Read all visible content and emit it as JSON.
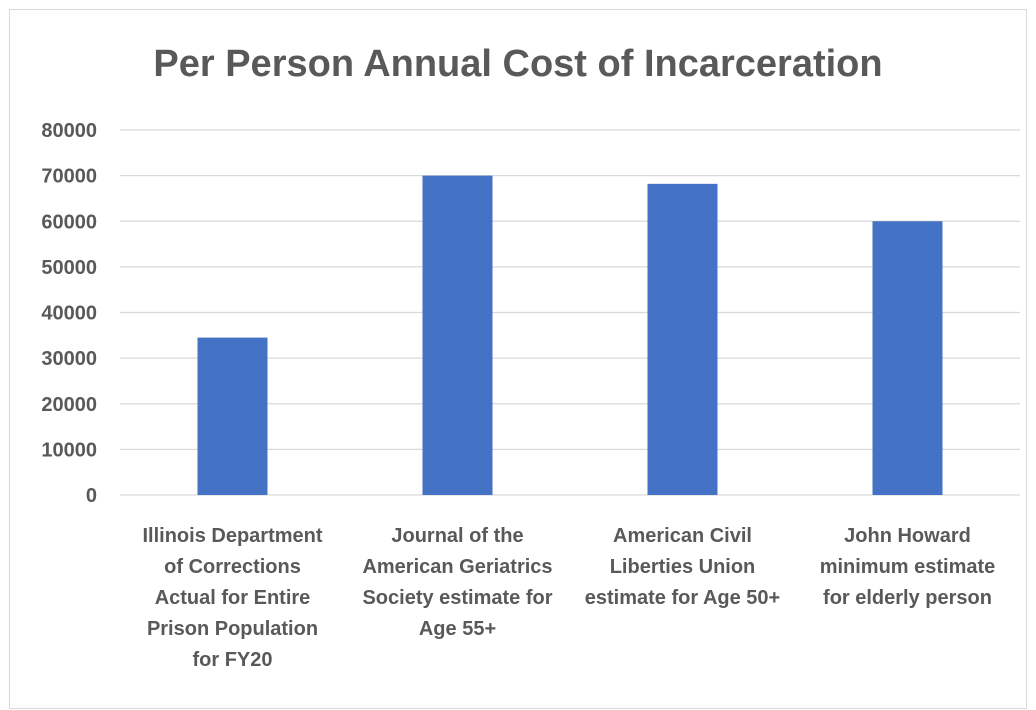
{
  "chart_data": {
    "type": "bar",
    "title": "Per Person Annual Cost of Incarceration",
    "xlabel": "",
    "ylabel": "",
    "ylim": [
      0,
      80000
    ],
    "yticks": [
      "0",
      "10000",
      "20000",
      "30000",
      "40000",
      "50000",
      "60000",
      "70000",
      "80000"
    ],
    "grid": true,
    "categories": [
      [
        "Illinois Department",
        "of Corrections",
        "Actual for Entire",
        "Prison Population",
        "for FY20"
      ],
      [
        "Journal of the",
        "American Geriatrics",
        "Society estimate for",
        "Age 55+"
      ],
      [
        "American Civil",
        "Liberties Union",
        "estimate for Age 50+"
      ],
      [
        "John Howard",
        "minimum estimate",
        "for elderly person"
      ]
    ],
    "values": [
      34500,
      70000,
      68200,
      60000
    ],
    "bar_color": "#4472c4",
    "grid_color": "#d9d9d9"
  }
}
